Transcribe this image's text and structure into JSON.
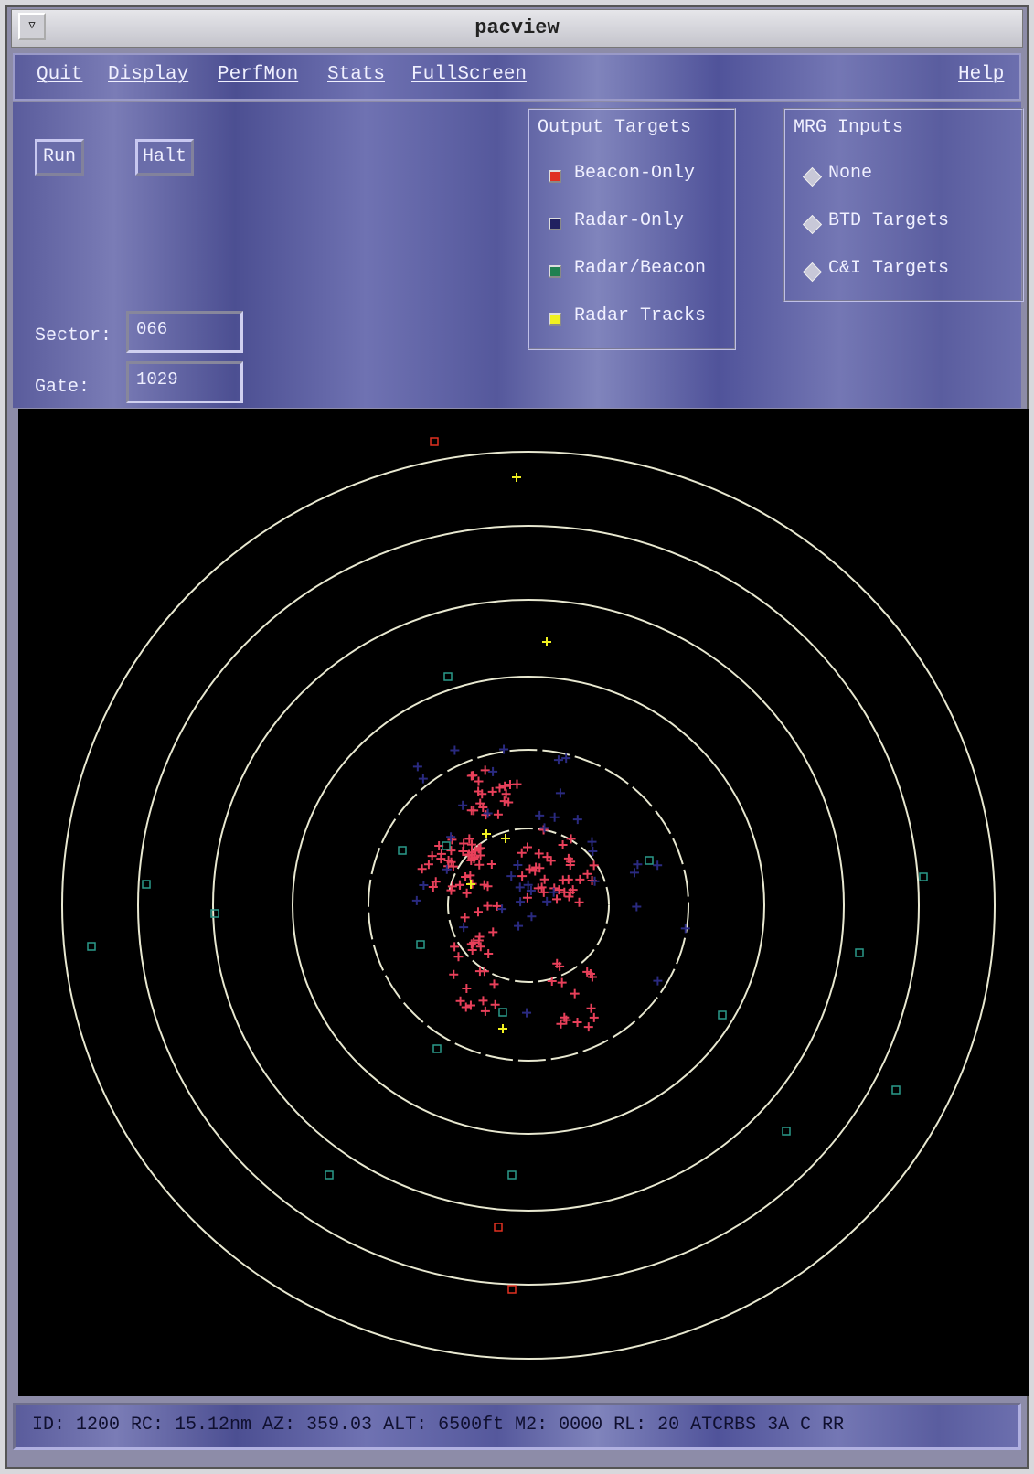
{
  "window": {
    "title": "pacview"
  },
  "menu": [
    "Quit",
    "Display",
    "PerfMon",
    "Stats",
    "FullScreen",
    "Help"
  ],
  "buttons": [
    "Run",
    "Halt"
  ],
  "fields": [
    {
      "label": "Sector:",
      "value": "066"
    },
    {
      "label": "Gate:",
      "value": "1029"
    }
  ],
  "output_targets": {
    "title": "Output Targets",
    "items": [
      "Beacon-Only",
      "Radar-Only",
      "Radar/Beacon",
      "Radar Tracks"
    ]
  },
  "mrg_inputs": {
    "title": "MRG Inputs",
    "items": [
      "None",
      "BTD Targets",
      "C&I Targets"
    ]
  },
  "status": "ID: 1200 RC: 15.12nm AZ: 359.03 ALT: 6500ft M2: 0000 RL: 20 ATCRBS 3A C RR"
}
